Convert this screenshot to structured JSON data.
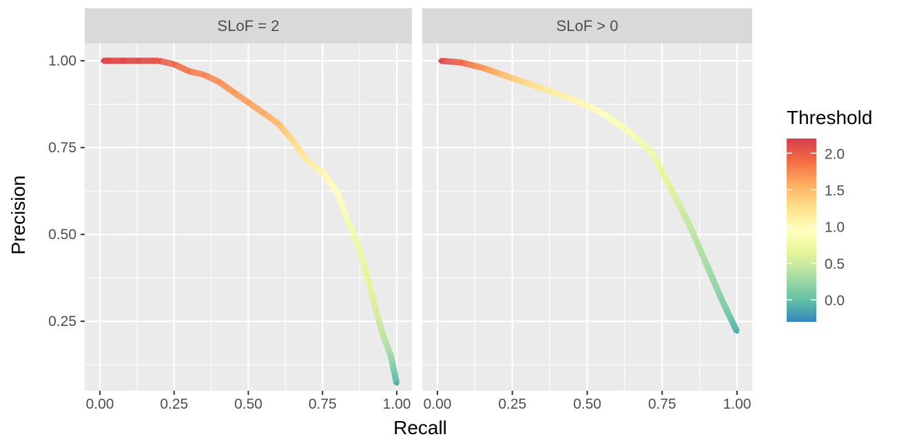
{
  "chart_data": {
    "type": "line",
    "facet_labels": [
      "SLoF = 2",
      "SLoF > 0"
    ],
    "xlabel": "Recall",
    "ylabel": "Precision",
    "xlim": [
      0,
      1
    ],
    "ylim": [
      0.05,
      1.05
    ],
    "x_ticks": [
      0.0,
      0.25,
      0.5,
      0.75,
      1.0
    ],
    "x_tick_labels": [
      "0.00",
      "0.25",
      "0.50",
      "0.75",
      "1.00"
    ],
    "y_ticks": [
      0.25,
      0.5,
      0.75,
      1.0
    ],
    "y_tick_labels": [
      "0.25",
      "0.50",
      "0.75",
      "1.00"
    ],
    "grid": true,
    "legend": {
      "title": "Threshold",
      "position": "right",
      "range": [
        -0.3,
        2.2
      ],
      "breaks": [
        0.0,
        0.5,
        1.0,
        1.5,
        2.0
      ],
      "break_labels": [
        "0.0",
        "0.5",
        "1.0",
        "1.5",
        "2.0"
      ],
      "colors": [
        "#3288bd",
        "#66c2a5",
        "#abdda4",
        "#e6f598",
        "#ffffbf",
        "#fee08b",
        "#fdae61",
        "#f46d43",
        "#d53e4f"
      ]
    },
    "series": [
      {
        "facet": "SLoF = 2",
        "points": [
          {
            "x": 0.01,
            "y": 1.0,
            "threshold": 2.15
          },
          {
            "x": 0.2,
            "y": 1.0,
            "threshold": 2.05
          },
          {
            "x": 0.25,
            "y": 0.99,
            "threshold": 1.95
          },
          {
            "x": 0.3,
            "y": 0.97,
            "threshold": 1.85
          },
          {
            "x": 0.35,
            "y": 0.96,
            "threshold": 1.8
          },
          {
            "x": 0.4,
            "y": 0.94,
            "threshold": 1.75
          },
          {
            "x": 0.45,
            "y": 0.91,
            "threshold": 1.7
          },
          {
            "x": 0.5,
            "y": 0.88,
            "threshold": 1.65
          },
          {
            "x": 0.55,
            "y": 0.85,
            "threshold": 1.6
          },
          {
            "x": 0.6,
            "y": 0.82,
            "threshold": 1.5
          },
          {
            "x": 0.65,
            "y": 0.77,
            "threshold": 1.3
          },
          {
            "x": 0.7,
            "y": 0.71,
            "threshold": 1.15
          },
          {
            "x": 0.75,
            "y": 0.68,
            "threshold": 1.05
          },
          {
            "x": 0.8,
            "y": 0.62,
            "threshold": 0.95
          },
          {
            "x": 0.83,
            "y": 0.55,
            "threshold": 0.85
          },
          {
            "x": 0.87,
            "y": 0.47,
            "threshold": 0.75
          },
          {
            "x": 0.9,
            "y": 0.38,
            "threshold": 0.65
          },
          {
            "x": 0.93,
            "y": 0.28,
            "threshold": 0.55
          },
          {
            "x": 0.95,
            "y": 0.22,
            "threshold": 0.45
          },
          {
            "x": 0.98,
            "y": 0.15,
            "threshold": 0.25
          },
          {
            "x": 1.0,
            "y": 0.07,
            "threshold": -0.1
          }
        ]
      },
      {
        "facet": "SLoF > 0",
        "points": [
          {
            "x": 0.01,
            "y": 1.0,
            "threshold": 2.15
          },
          {
            "x": 0.08,
            "y": 0.995,
            "threshold": 1.95
          },
          {
            "x": 0.15,
            "y": 0.98,
            "threshold": 1.7
          },
          {
            "x": 0.25,
            "y": 0.95,
            "threshold": 1.4
          },
          {
            "x": 0.35,
            "y": 0.92,
            "threshold": 1.2
          },
          {
            "x": 0.45,
            "y": 0.89,
            "threshold": 1.05
          },
          {
            "x": 0.55,
            "y": 0.85,
            "threshold": 0.95
          },
          {
            "x": 0.65,
            "y": 0.79,
            "threshold": 0.85
          },
          {
            "x": 0.72,
            "y": 0.73,
            "threshold": 0.75
          },
          {
            "x": 0.78,
            "y": 0.63,
            "threshold": 0.6
          },
          {
            "x": 0.84,
            "y": 0.53,
            "threshold": 0.45
          },
          {
            "x": 0.9,
            "y": 0.41,
            "threshold": 0.3
          },
          {
            "x": 0.95,
            "y": 0.31,
            "threshold": 0.15
          },
          {
            "x": 1.0,
            "y": 0.22,
            "threshold": -0.1
          }
        ]
      }
    ]
  }
}
